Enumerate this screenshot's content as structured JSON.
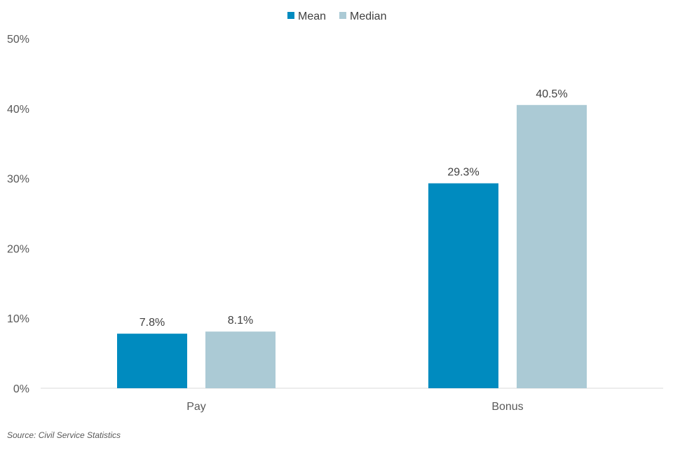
{
  "chart_data": {
    "type": "bar",
    "categories": [
      "Pay",
      "Bonus"
    ],
    "series": [
      {
        "name": "Mean",
        "values": [
          7.8,
          29.3
        ],
        "labels": [
          "7.8%",
          "29.3%"
        ],
        "color": "#008bbf"
      },
      {
        "name": "Median",
        "values": [
          8.1,
          40.5
        ],
        "labels": [
          "8.1%",
          "40.5%"
        ],
        "color": "#abcad5"
      }
    ],
    "ylim": [
      0,
      50
    ],
    "yticks": [
      0,
      10,
      20,
      30,
      40,
      50
    ],
    "ytick_labels": [
      "0%",
      "10%",
      "20%",
      "30%",
      "40%",
      "50%"
    ],
    "grid": false,
    "legend": "top-center",
    "axis_color": "#d9d9d9"
  },
  "source": "Source: Civil Service Statistics"
}
